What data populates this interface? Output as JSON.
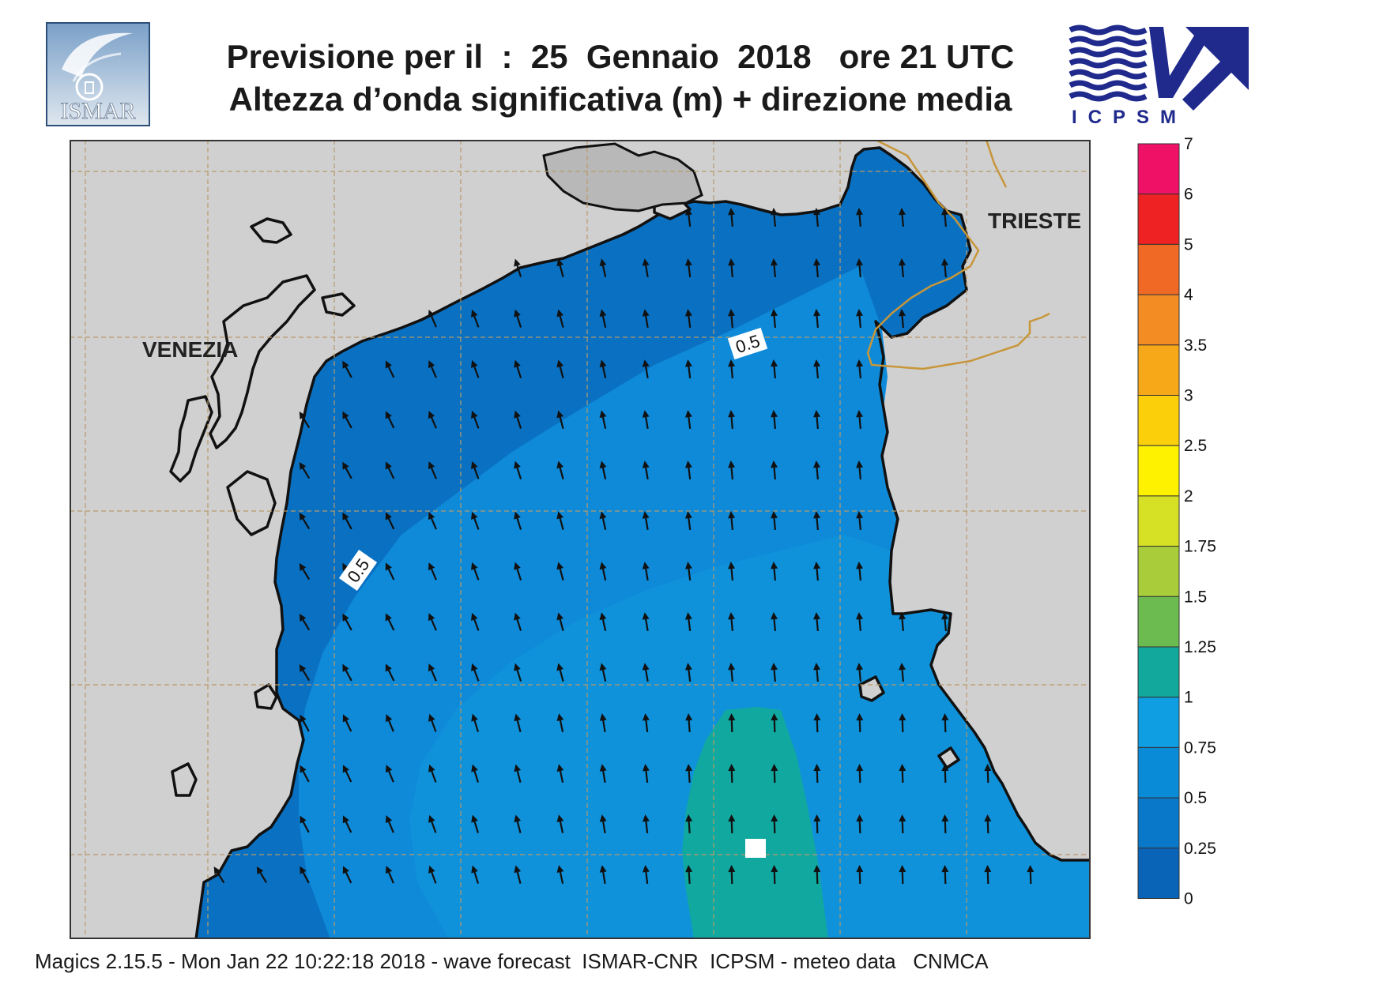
{
  "header": {
    "title_line1": "Previsione per il  :  25  Gennaio  2018   ore 21 UTC",
    "title_line2": "Altezza d’onda significativa (m) + direzione media"
  },
  "logos": {
    "left": {
      "text": "ISMAR",
      "icon": "ismar-logo-icon"
    },
    "right": {
      "text": "ICPSM",
      "icon": "icpsm-logo-icon",
      "color": "#1f2a8c"
    }
  },
  "map": {
    "cities": [
      {
        "name": "VENEZIA"
      },
      {
        "name": "TRIESTE"
      }
    ],
    "contour_labels": [
      "0.5",
      "0.5"
    ],
    "colors": {
      "land": "#d0d0d0",
      "sea_low": "#0a71c2",
      "sea_mid": "#0f8ad8",
      "sea_high": "#11a8a0",
      "coast": "#111111",
      "border": "#c8963a",
      "grid": "#b89a6a"
    },
    "arrow_direction": "north-northwest"
  },
  "legend": {
    "labels": [
      "7",
      "6",
      "5",
      "4",
      "3.5",
      "3",
      "2.5",
      "2",
      "1.75",
      "1.5",
      "1.25",
      "1",
      "0.75",
      "0.5",
      "0.25",
      "0"
    ],
    "colors": [
      "#ee1166",
      "#ee2222",
      "#f06a25",
      "#f38c22",
      "#f6a818",
      "#fbd00b",
      "#fff200",
      "#d6e025",
      "#a9cd3a",
      "#6cbb50",
      "#12a89b",
      "#0f9ee2",
      "#0a8bd7",
      "#0a78c8",
      "#0964b8"
    ]
  },
  "footer": {
    "text": "Magics 2.15.5 - Mon Jan 22 10:22:18 2018 - wave forecast  ISMAR-CNR  ICPSM - meteo data   CNMCA"
  }
}
